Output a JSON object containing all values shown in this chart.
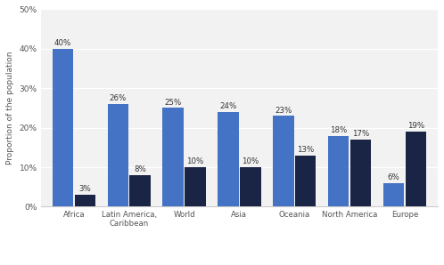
{
  "categories": [
    "Africa",
    "Latin America,\nCaribbean",
    "World",
    "Asia",
    "Oceania",
    "North America",
    "Europe"
  ],
  "under15": [
    40,
    26,
    25,
    24,
    23,
    18,
    6
  ],
  "over65": [
    3,
    8,
    10,
    10,
    13,
    17,
    19
  ],
  "under15_color": "#4472c4",
  "over65_color": "#1a2444",
  "ylabel": "Proportion of the population",
  "ylim": [
    0,
    50
  ],
  "yticks": [
    0,
    10,
    20,
    30,
    40,
    50
  ],
  "plot_bg_color": "#f2f2f2",
  "fig_bg_color": "#ffffff",
  "bar_width": 0.38,
  "bar_gap": 0.02
}
